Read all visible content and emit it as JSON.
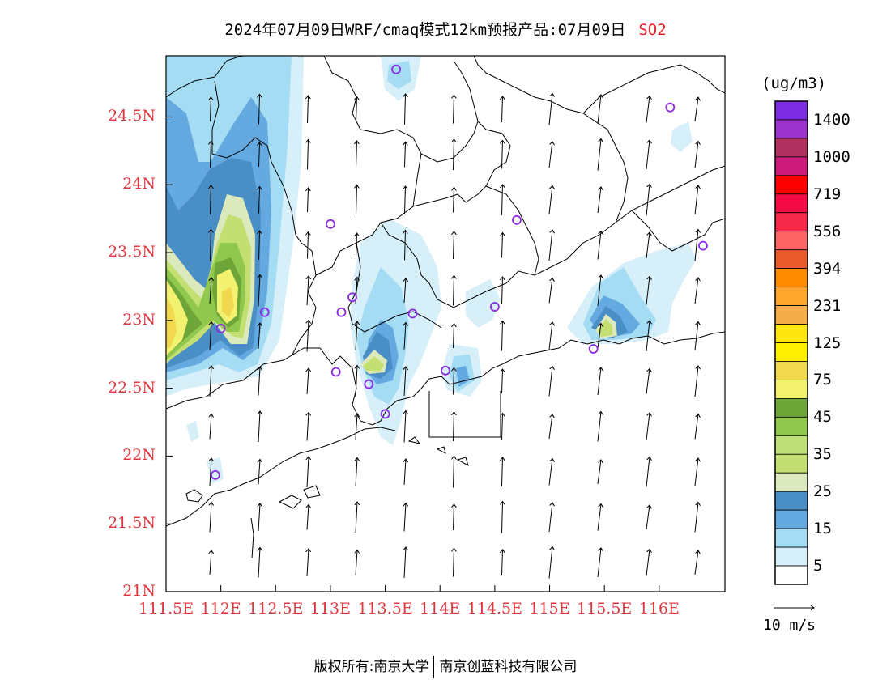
{
  "title": {
    "main": "2024年07月09日WRF/cmaq模式12km预报产品:07月09日",
    "pollutant": "SO2"
  },
  "axes": {
    "lat_labels": [
      "24.5N",
      "24N",
      "23.5N",
      "23N",
      "22.5N",
      "22N",
      "21.5N",
      "21N"
    ],
    "lon_labels": [
      "111.5E",
      "112E",
      "112.5E",
      "113E",
      "113.5E",
      "114E",
      "114.5E",
      "115E",
      "115.5E",
      "116E"
    ],
    "lat_range": [
      21,
      24.95
    ],
    "lon_range": [
      111.5,
      116.6
    ]
  },
  "colorbar": {
    "units": "(ug/m3)",
    "labels": [
      "1400",
      "1000",
      "719",
      "556",
      "394",
      "231",
      "125",
      "75",
      "45",
      "35",
      "25",
      "15",
      "5"
    ],
    "colors_top_to_bottom": [
      "#7d2be0",
      "#9a32cc",
      "#b0305e",
      "#cc1a7a",
      "#ff0000",
      "#f40b45",
      "#f5284a",
      "#ff6565",
      "#eb5a2c",
      "#ff8c00",
      "#fea62e",
      "#f4ad4a",
      "#ffe60f",
      "#fff000",
      "#f2d84e",
      "#f2f270",
      "#6da538",
      "#8fc84c",
      "#bedf78",
      "#c3de71",
      "#dbe9bd",
      "#4a8ec6",
      "#64a9df",
      "#a4dcf4",
      "#d7eff9",
      "#ffffff"
    ],
    "colors": {
      "c5": "#d7eff9",
      "c15": "#a4dcf4",
      "c20": "#64a9df",
      "c25": "#4a8ec6",
      "c30": "#dbe9bd",
      "c35": "#c3de71",
      "c40": "#bedf78",
      "c45": "#8fc84c",
      "c50": "#6da538",
      "c75": "#f2f270",
      "c100": "#f2d84e",
      "c125": "#fff000",
      "site": "#8a2be2"
    }
  },
  "wind_reference": {
    "label": "10 m/s"
  },
  "monitor_sites": [
    {
      "lon": 113.6,
      "lat": 24.85
    },
    {
      "lon": 116.1,
      "lat": 24.57
    },
    {
      "lon": 113.0,
      "lat": 23.71
    },
    {
      "lon": 114.7,
      "lat": 23.74
    },
    {
      "lon": 116.4,
      "lat": 23.55
    },
    {
      "lon": 112.4,
      "lat": 23.06
    },
    {
      "lon": 113.1,
      "lat": 23.06
    },
    {
      "lon": 113.2,
      "lat": 23.17
    },
    {
      "lon": 113.75,
      "lat": 23.05
    },
    {
      "lon": 114.5,
      "lat": 23.1
    },
    {
      "lon": 112.0,
      "lat": 22.94
    },
    {
      "lon": 115.4,
      "lat": 22.79
    },
    {
      "lon": 113.05,
      "lat": 22.62
    },
    {
      "lon": 113.35,
      "lat": 22.53
    },
    {
      "lon": 114.05,
      "lat": 22.63
    },
    {
      "lon": 113.5,
      "lat": 22.31
    },
    {
      "lon": 111.95,
      "lat": 21.86
    }
  ],
  "footer": {
    "left": "版权所有:南京大学",
    "right": "南京创蓝科技有限公司"
  }
}
